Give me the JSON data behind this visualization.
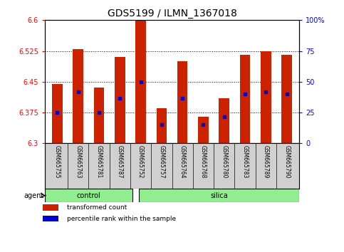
{
  "title": "GDS5199 / ILMN_1367018",
  "samples": [
    "GSM665755",
    "GSM665763",
    "GSM665781",
    "GSM665787",
    "GSM665752",
    "GSM665757",
    "GSM665764",
    "GSM665768",
    "GSM665780",
    "GSM665783",
    "GSM665789",
    "GSM665790"
  ],
  "bar_values": [
    6.445,
    6.53,
    6.435,
    6.51,
    6.6,
    6.385,
    6.5,
    6.365,
    6.41,
    6.515,
    6.525,
    6.515
  ],
  "percentile_values": [
    6.375,
    6.425,
    6.375,
    6.41,
    6.45,
    6.345,
    6.41,
    6.345,
    6.365,
    6.42,
    6.425,
    6.42
  ],
  "ymin": 6.3,
  "ymax": 6.6,
  "yticks": [
    6.3,
    6.375,
    6.45,
    6.525,
    6.6
  ],
  "ytick_labels": [
    "6.3",
    "6.375",
    "6.45",
    "6.525",
    "6.6"
  ],
  "right_yticks": [
    0,
    25,
    50,
    75,
    100
  ],
  "right_ytick_labels": [
    "0",
    "25",
    "50",
    "75",
    "100%"
  ],
  "bar_color": "#cc2200",
  "percentile_color": "#0000cc",
  "background_color": "#ffffff",
  "plot_bg_color": "#ffffff",
  "grid_color": "#000000",
  "control_count": 4,
  "silica_count": 8,
  "group_color": "#90ee90",
  "agent_label": "agent",
  "legend_items": [
    {
      "label": "transformed count",
      "color": "#cc2200"
    },
    {
      "label": "percentile rank within the sample",
      "color": "#0000cc"
    }
  ],
  "bar_width": 0.5,
  "title_fontsize": 10,
  "tick_fontsize": 7,
  "label_fontsize": 7,
  "sample_fontsize": 5.5
}
